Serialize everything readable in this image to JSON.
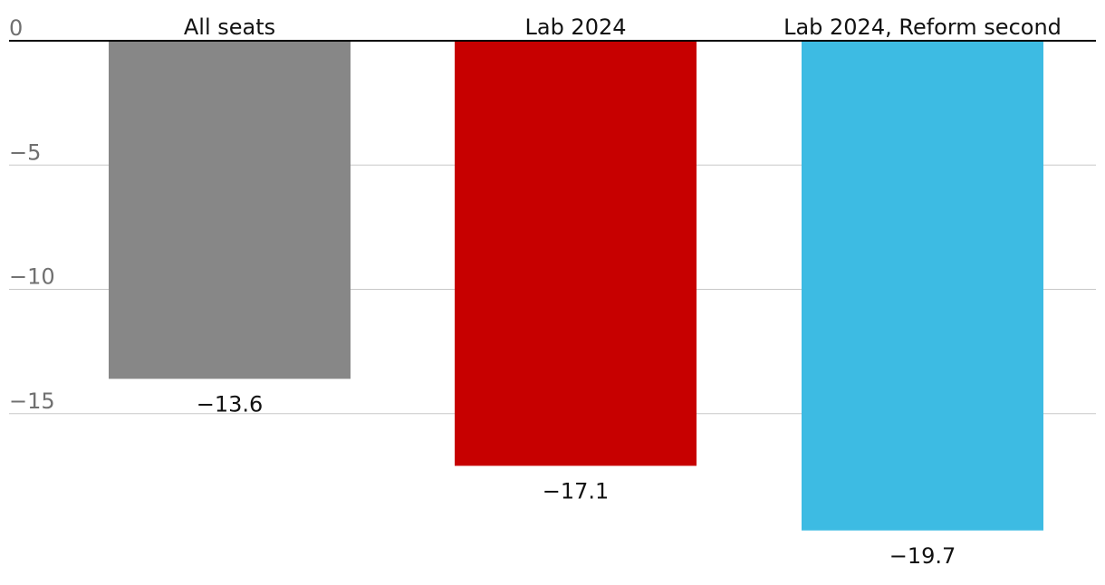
{
  "chart_data": {
    "type": "bar",
    "categories": [
      "All seats",
      "Lab 2024",
      "Lab 2024, Reform second"
    ],
    "values": [
      -13.6,
      -17.1,
      -19.7
    ],
    "value_labels": [
      "−13.6",
      "−17.1",
      "−19.7"
    ],
    "colors": [
      "#878787",
      "#c70000",
      "#3dbbe3"
    ],
    "yticks": [
      0,
      -5,
      -10,
      -15
    ],
    "ytick_labels": [
      "0",
      "−5",
      "−10",
      "−15"
    ],
    "ylim": [
      -19.7,
      0
    ],
    "grid": true,
    "title": "",
    "xlabel": "",
    "ylabel": ""
  }
}
